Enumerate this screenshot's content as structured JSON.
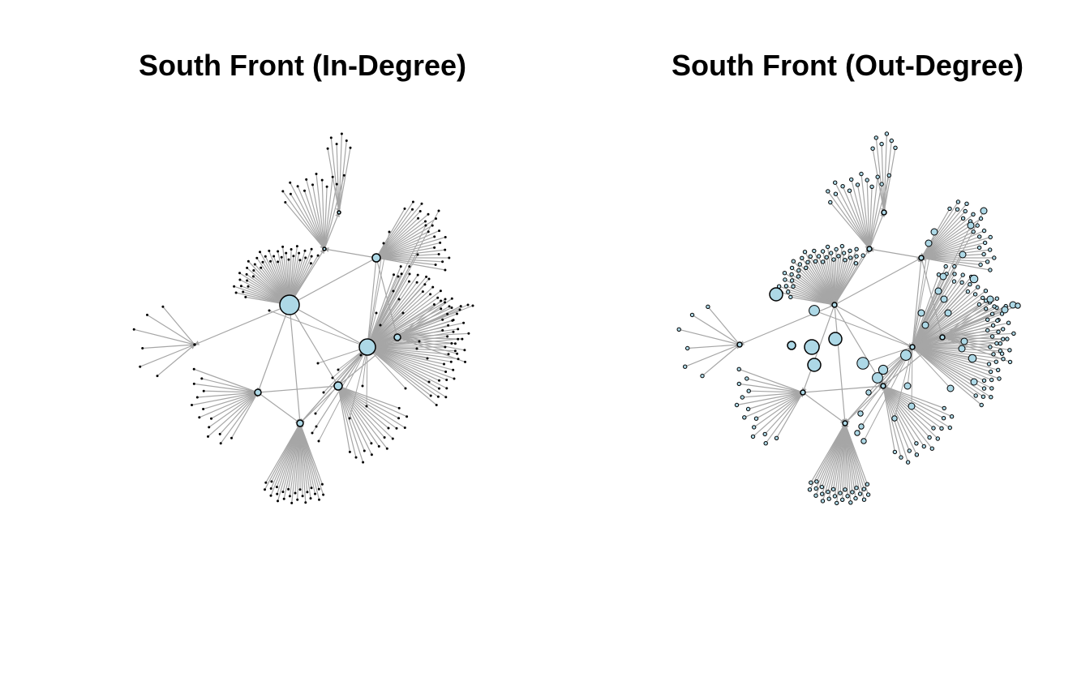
{
  "figure": {
    "panels": [
      {
        "title": "South Front (In-Degree)",
        "measure": "in-degree"
      },
      {
        "title": "South Front (Out-Degree)",
        "measure": "out-degree"
      }
    ],
    "colors": {
      "background": "#ffffff",
      "edge": "#a6a6a6",
      "node_fill": "#add8e6",
      "node_stroke": "#000000",
      "title": "#000000"
    }
  }
}
